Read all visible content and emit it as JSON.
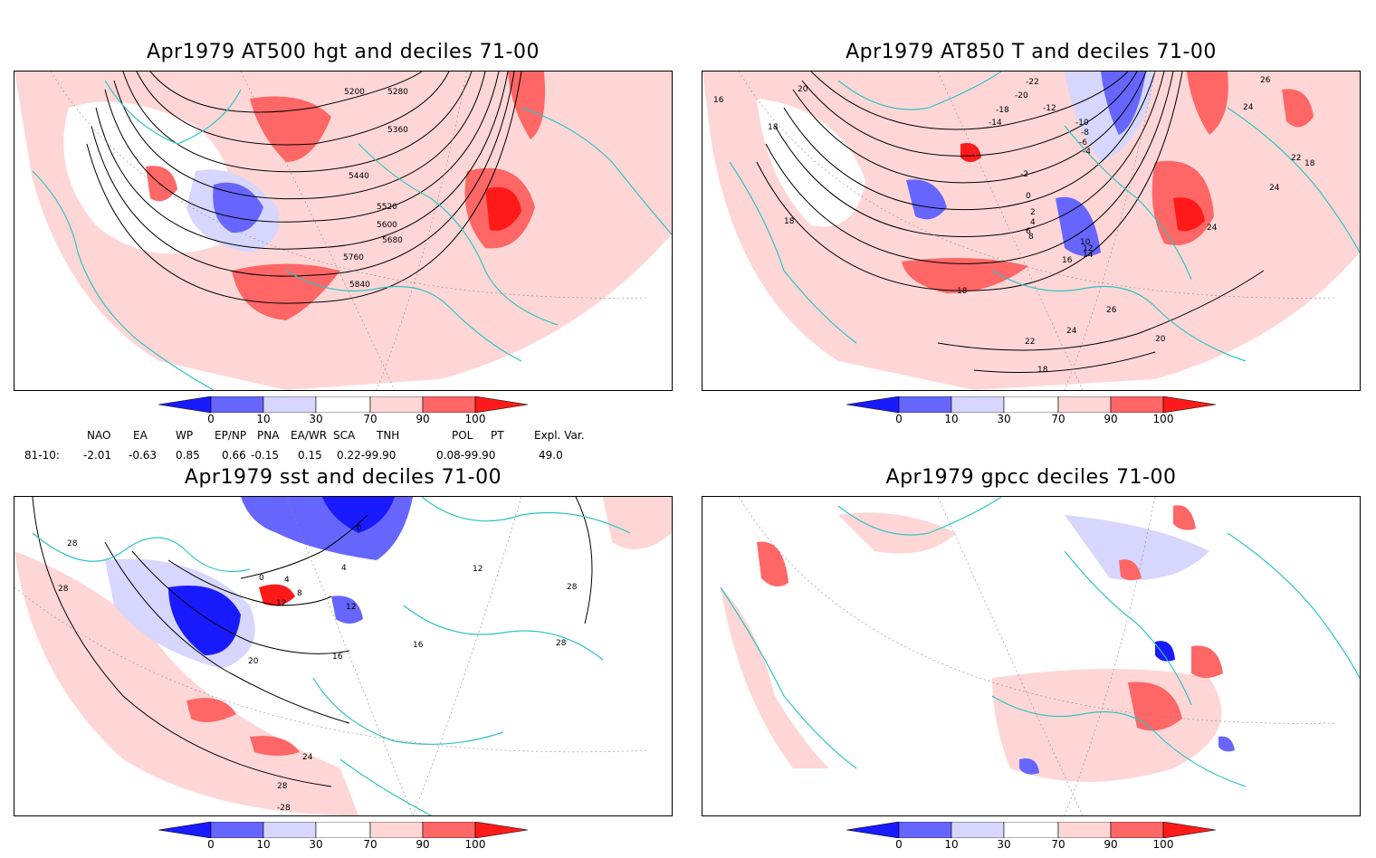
{
  "panels": [
    {
      "title": "Apr1979 AT500 hgt and deciles 71-00",
      "contour_labels": [
        "5200",
        "5280",
        "5360",
        "5440",
        "5520",
        "5600",
        "5680",
        "5760",
        "5840"
      ]
    },
    {
      "title": "Apr1979 AT850 T and deciles 71-00",
      "contour_labels": [
        "16",
        "18",
        "18",
        "20",
        "-22",
        "-20",
        "-18",
        "-14",
        "-12",
        "-10",
        "-8",
        "-6",
        "-4",
        "-2",
        "0",
        "2",
        "4",
        "6",
        "8",
        "10",
        "12",
        "14",
        "16",
        "18",
        "22",
        "24",
        "24",
        "24",
        "26",
        "20",
        "22",
        "24",
        "26",
        "18",
        "18"
      ]
    },
    {
      "title": "Apr1979 sst and deciles 71-00",
      "contour_labels": [
        "28",
        "28",
        "0",
        "4",
        "8",
        "12",
        "4",
        "0",
        "12",
        "16",
        "16",
        "20",
        "24",
        "28",
        "-28",
        "28",
        "28",
        "12"
      ]
    },
    {
      "title": "Apr1979 gpcc deciles 71-00",
      "contour_labels": []
    }
  ],
  "colorbar": {
    "ticks": [
      "0",
      "10",
      "30",
      "70",
      "90",
      "100"
    ],
    "colors": [
      "#1a1aff",
      "#6666ff",
      "#d6d6ff",
      "#ffffff",
      "#ffd6d6",
      "#ff6666",
      "#ff1a1a"
    ]
  },
  "indices": {
    "row_label": "81-10:",
    "names": [
      "NAO",
      "EA",
      "WP",
      "EP/NP",
      "PNA",
      "EA/WR",
      "SCA",
      "TNH",
      "POL",
      "PT",
      "Expl. Var."
    ],
    "values": [
      "-2.01",
      "-0.63",
      "0.85",
      "0.66",
      "-0.15",
      "0.15",
      "0.22-99.90",
      "0.08-99.90",
      "49.0"
    ]
  },
  "colors": {
    "coastline": "#2ec4c4",
    "grid": "#888888",
    "contour": "#000000"
  }
}
